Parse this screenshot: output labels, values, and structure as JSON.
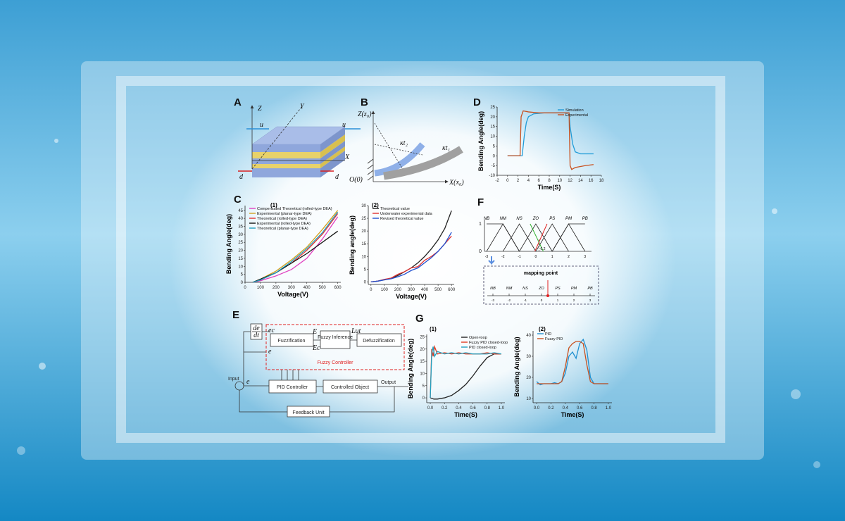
{
  "panel_a": {
    "label": "A",
    "axes": [
      "Z",
      "Y",
      "X"
    ],
    "forces": [
      "u",
      "u",
      "d",
      "d"
    ]
  },
  "panel_b": {
    "label": "B",
    "z_axis": "Z(z₀)",
    "x_axis": "X(x₀)",
    "origin": "O(0)",
    "curvatures": [
      "κt₂",
      "κt₁"
    ]
  },
  "panel_c_label": "C",
  "panel_g_label": "G",
  "panel_f": {
    "label": "F",
    "sets": [
      "NB",
      "NM",
      "NS",
      "ZO",
      "PS",
      "PM",
      "PB"
    ],
    "ticks": [
      -3,
      -2,
      -1,
      0,
      1,
      2,
      3
    ],
    "membership_top": 1,
    "membership_zero": 0,
    "offset": 0.2,
    "mapping": "mapping point"
  },
  "panel_e": {
    "label": "E",
    "derivative": {
      "numerator": "de",
      "denominator": "dt"
    },
    "ec": "ec",
    "e_top": "e",
    "fuzzification": "Fuzzification",
    "E": "E",
    "Ec": "Ec",
    "inference": "Fuzzy Inference",
    "lut": "Lut",
    "defuzzification": "Defuzzification",
    "controller": "Fuzzy Controller",
    "input": "Input",
    "e": "e",
    "pid": "PID Controller",
    "object": "Controlled Object",
    "output": "Output",
    "feedback": "Feedback Unit"
  },
  "chart_data": [
    {
      "type": "line",
      "panel_label": "D",
      "xlabel": "Time(S)",
      "ylabel": "Bending Angle(deg)",
      "xlim": [
        -2,
        18
      ],
      "ylim": [
        -10,
        25
      ],
      "xticks": [
        -2,
        0,
        2,
        4,
        6,
        8,
        10,
        12,
        14,
        16,
        18
      ],
      "yticks": [
        -10,
        -5,
        0,
        5,
        10,
        15,
        20,
        25
      ],
      "legend": "upper right",
      "series": [
        {
          "name": "Simulation",
          "color": "#1f9bd7",
          "x": [
            0,
            2.8,
            3.2,
            3.6,
            4,
            5,
            7,
            9,
            11.5,
            11.8,
            12,
            12.5,
            13,
            14,
            16.5
          ],
          "values": [
            0,
            0,
            10,
            17,
            20,
            21.5,
            22,
            22,
            22,
            22,
            15,
            6,
            2,
            1,
            1
          ]
        },
        {
          "name": "Experimental",
          "color": "#c8501e",
          "x": [
            0,
            1.2,
            2.4,
            2.6,
            3,
            4,
            6,
            8,
            10,
            11.8,
            12,
            12.3,
            13,
            15,
            16.5
          ],
          "values": [
            0,
            0,
            0,
            20,
            23,
            22.5,
            22,
            22,
            22,
            22,
            -5,
            -7,
            -6,
            -5,
            -4.5
          ]
        }
      ]
    },
    {
      "type": "line",
      "title": "(1)",
      "xlabel": "Voltage(V)",
      "ylabel": "Bending Angle(deg)",
      "xlim": [
        0,
        620
      ],
      "ylim": [
        0,
        48
      ],
      "xticks": [
        0,
        100,
        200,
        300,
        400,
        500,
        600
      ],
      "yticks": [
        0,
        5,
        10,
        15,
        20,
        25,
        30,
        35,
        40,
        45
      ],
      "legend": "upper left",
      "series": [
        {
          "name": "Compensated Theoretical (rolled-type DEA)",
          "color": "#e040c0",
          "x": [
            50,
            100,
            200,
            300,
            400,
            500,
            600
          ],
          "values": [
            0,
            1,
            4,
            8,
            15,
            27,
            41
          ]
        },
        {
          "name": "Experimental (planar-type DEA)",
          "color": "#d4a020",
          "x": [
            50,
            100,
            200,
            300,
            400,
            500,
            600
          ],
          "values": [
            0,
            2,
            7,
            14,
            22,
            33,
            45
          ]
        },
        {
          "name": "Theoretical (rolled-type DEA)",
          "color": "#e03030",
          "x": [
            50,
            100,
            200,
            300,
            400,
            500,
            600
          ],
          "values": [
            0,
            1.5,
            6,
            12,
            20,
            30,
            43
          ]
        },
        {
          "name": "Experimental (rolled-type DEA)",
          "color": "#111111",
          "x": [
            50,
            100,
            200,
            300,
            400,
            500,
            600
          ],
          "values": [
            0,
            2,
            6,
            12,
            18,
            25,
            32
          ]
        },
        {
          "name": "Theoretical  (planar-type DEA)",
          "color": "#20a0c0",
          "x": [
            50,
            100,
            200,
            300,
            400,
            500,
            600
          ],
          "values": [
            0,
            1.5,
            6,
            13,
            21,
            31,
            44
          ]
        }
      ]
    },
    {
      "type": "line",
      "title": "(2)",
      "xlabel": "Voltage(V)",
      "ylabel": "Bending angle(deg)",
      "xlim": [
        -20,
        620
      ],
      "ylim": [
        -1,
        30
      ],
      "xticks": [
        0,
        100,
        200,
        300,
        400,
        500,
        600
      ],
      "yticks": [
        0,
        5,
        10,
        15,
        20,
        25,
        30
      ],
      "legend": "upper left",
      "series": [
        {
          "name": "Theoretical value",
          "color": "#222222",
          "x": [
            0,
            50,
            100,
            150,
            200,
            250,
            300,
            350,
            400,
            450,
            500,
            550,
            600
          ],
          "values": [
            0,
            0.3,
            0.8,
            1.5,
            2.5,
            4,
            5.5,
            7.5,
            10,
            13,
            16.5,
            21,
            28
          ]
        },
        {
          "name": "Underwater experimental data",
          "color": "#e03030",
          "x": [
            0,
            50,
            100,
            150,
            200,
            250,
            300,
            350,
            400,
            450,
            500,
            550,
            600
          ],
          "values": [
            0,
            0.3,
            1,
            1.5,
            3,
            4,
            5.5,
            6,
            8.5,
            10,
            12,
            15,
            18
          ]
        },
        {
          "name": "Revised theoretical value",
          "color": "#2050d0",
          "x": [
            0,
            50,
            100,
            150,
            200,
            250,
            300,
            350,
            400,
            450,
            500,
            550,
            600
          ],
          "values": [
            0,
            0.3,
            0.8,
            1.2,
            2,
            3,
            4.5,
            5.5,
            7.5,
            9.5,
            12,
            15,
            19.5
          ]
        }
      ]
    },
    {
      "type": "line",
      "title": "(1)",
      "xlabel": "Time(S)",
      "ylabel": "Bending Angle(deg)",
      "xlim": [
        -0.05,
        1.05
      ],
      "ylim": [
        -2,
        26
      ],
      "xticks": [
        {
          "value": 0,
          "label": "0.0"
        },
        0.2,
        0.4,
        0.6,
        0.8,
        {
          "value": 1,
          "label": "1.0"
        }
      ],
      "yticks": [
        0,
        5,
        10,
        15,
        20,
        25
      ],
      "legend": "upper right",
      "series": [
        {
          "name": "Open-loop",
          "color": "#222222",
          "x": [
            0,
            0.05,
            0.1,
            0.2,
            0.3,
            0.4,
            0.5,
            0.6,
            0.7,
            0.8,
            0.9,
            1.0
          ],
          "values": [
            0,
            -0.5,
            -0.5,
            0,
            1,
            3,
            5.5,
            9,
            13,
            16.5,
            18,
            18
          ]
        },
        {
          "name": "Fuzzy PID closed-loop",
          "color": "#e03a20",
          "x": [
            0,
            0.02,
            0.04,
            0.06,
            0.1,
            0.2,
            0.3,
            0.4,
            0.5,
            0.6,
            0.7,
            0.8,
            0.9,
            1.0
          ],
          "values": [
            0,
            20,
            17,
            21,
            18,
            18.5,
            18,
            18.5,
            18,
            18,
            18,
            18.5,
            18,
            18
          ]
        },
        {
          "name": "PID closed-loop",
          "color": "#20a0c0",
          "x": [
            0,
            0.02,
            0.04,
            0.06,
            0.1,
            0.2,
            0.3,
            0.4,
            0.5,
            0.6,
            0.7,
            0.8,
            0.9,
            1.0
          ],
          "values": [
            0,
            18,
            21,
            17,
            19,
            18,
            18.5,
            18,
            18.5,
            18,
            18,
            18,
            18.5,
            18
          ]
        }
      ]
    },
    {
      "type": "line",
      "title": "(2)",
      "xlabel": "Time(S)",
      "ylabel": "Bending Angle(deg)",
      "xlim": [
        -0.05,
        1.05
      ],
      "ylim": [
        8,
        42
      ],
      "xticks": [
        {
          "value": 0,
          "label": "0.0"
        },
        0.2,
        0.4,
        0.6,
        0.8,
        {
          "value": 1,
          "label": "1.0"
        }
      ],
      "yticks": [
        10,
        20,
        30,
        40
      ],
      "legend": "upper left",
      "series": [
        {
          "name": "PID",
          "color": "#2090d0",
          "x": [
            0,
            0.05,
            0.1,
            0.15,
            0.2,
            0.25,
            0.3,
            0.35,
            0.4,
            0.45,
            0.5,
            0.55,
            0.6,
            0.65,
            0.7,
            0.75,
            0.8,
            0.85,
            0.9,
            0.95,
            1.0
          ],
          "values": [
            18,
            16.5,
            17,
            17,
            17,
            17.5,
            17,
            18,
            22,
            30,
            32,
            29,
            36,
            38,
            33,
            20,
            17,
            17,
            17,
            17,
            17
          ]
        },
        {
          "name": "Fuzzy PID",
          "color": "#c8501e",
          "x": [
            0,
            0.05,
            0.1,
            0.15,
            0.2,
            0.25,
            0.3,
            0.35,
            0.4,
            0.45,
            0.5,
            0.55,
            0.6,
            0.65,
            0.7,
            0.75,
            0.8,
            0.85,
            0.9,
            0.95,
            1.0
          ],
          "values": [
            17,
            17,
            17,
            17,
            17,
            17,
            17,
            18,
            25,
            34,
            36,
            37,
            37,
            36,
            26,
            18,
            17,
            17,
            17,
            17,
            17
          ]
        }
      ]
    }
  ]
}
